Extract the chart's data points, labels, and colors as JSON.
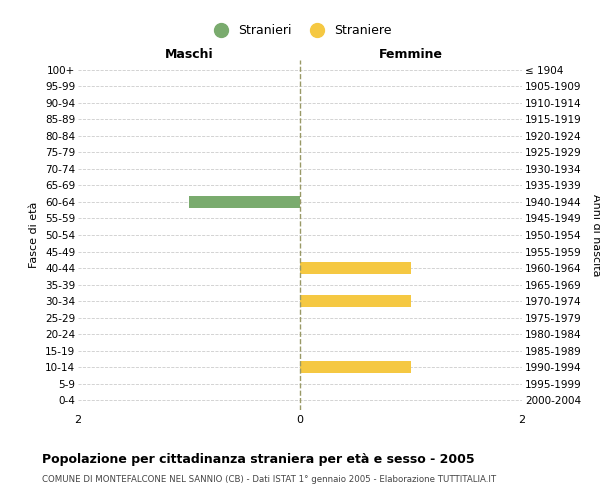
{
  "age_groups": [
    "100+",
    "95-99",
    "90-94",
    "85-89",
    "80-84",
    "75-79",
    "70-74",
    "65-69",
    "60-64",
    "55-59",
    "50-54",
    "45-49",
    "40-44",
    "35-39",
    "30-34",
    "25-29",
    "20-24",
    "15-19",
    "10-14",
    "5-9",
    "0-4"
  ],
  "birth_years": [
    "≤ 1904",
    "1905-1909",
    "1910-1914",
    "1915-1919",
    "1920-1924",
    "1925-1929",
    "1930-1934",
    "1935-1939",
    "1940-1944",
    "1945-1949",
    "1950-1954",
    "1955-1959",
    "1960-1964",
    "1965-1969",
    "1970-1974",
    "1975-1979",
    "1980-1984",
    "1985-1989",
    "1990-1994",
    "1995-1999",
    "2000-2004"
  ],
  "males": [
    0,
    0,
    0,
    0,
    0,
    0,
    0,
    0,
    1,
    0,
    0,
    0,
    0,
    0,
    0,
    0,
    0,
    0,
    0,
    0,
    0
  ],
  "females": [
    0,
    0,
    0,
    0,
    0,
    0,
    0,
    0,
    0,
    0,
    0,
    0,
    1,
    0,
    1,
    0,
    0,
    0,
    1,
    0,
    0
  ],
  "male_color": "#7aab6e",
  "female_color": "#f5c842",
  "xlim": [
    -2,
    2
  ],
  "xticks": [
    -2,
    0,
    2
  ],
  "title": "Popolazione per cittadinanza straniera per età e sesso - 2005",
  "subtitle": "COMUNE DI MONTEFALCONE NEL SANNIO (CB) - Dati ISTAT 1° gennaio 2005 - Elaborazione TUTTITALIA.IT",
  "ylabel_left": "Fasce di età",
  "ylabel_right": "Anni di nascita",
  "header_left": "Maschi",
  "header_right": "Femmine",
  "legend_stranieri": "Stranieri",
  "legend_straniere": "Straniere",
  "bg_color": "#ffffff",
  "grid_color": "#cccccc",
  "center_line_color": "#999966",
  "bar_height": 0.75
}
